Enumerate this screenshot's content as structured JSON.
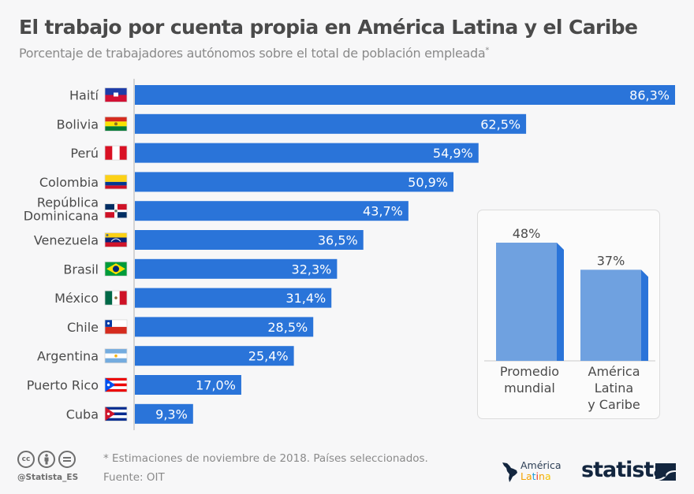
{
  "header": {
    "title": "El trabajo por cuenta propia en América Latina y el Caribe",
    "subtitle": "Porcentaje de trabajadores autónomos sobre el total de población empleada",
    "subtitle_mark": "*"
  },
  "colors": {
    "bar": "#2a74d9",
    "inset_front": "#6fa1e0",
    "inset_side": "#2a74d9",
    "axis": "#c8c8c8"
  },
  "chart_data": [
    {
      "type": "bar",
      "orientation": "horizontal",
      "title": "El trabajo por cuenta propia en América Latina y el Caribe",
      "subtitle": "Porcentaje de trabajadores autónomos sobre el total de población empleada*",
      "xlabel": "",
      "ylabel": "",
      "unit": "%",
      "xlim": [
        0,
        86.3
      ],
      "grid": false,
      "categories": [
        {
          "label": [
            "Haití"
          ],
          "flag": "haiti"
        },
        {
          "label": [
            "Bolivia"
          ],
          "flag": "bolivia"
        },
        {
          "label": [
            "Perú"
          ],
          "flag": "peru"
        },
        {
          "label": [
            "Colombia"
          ],
          "flag": "colombia"
        },
        {
          "label": [
            "República",
            "Dominicana"
          ],
          "flag": "dominican-republic"
        },
        {
          "label": [
            "Venezuela"
          ],
          "flag": "venezuela"
        },
        {
          "label": [
            "Brasil"
          ],
          "flag": "brazil"
        },
        {
          "label": [
            "México"
          ],
          "flag": "mexico"
        },
        {
          "label": [
            "Chile"
          ],
          "flag": "chile"
        },
        {
          "label": [
            "Argentina"
          ],
          "flag": "argentina"
        },
        {
          "label": [
            "Puerto Rico"
          ],
          "flag": "puerto-rico"
        },
        {
          "label": [
            "Cuba"
          ],
          "flag": "cuba"
        }
      ],
      "values": [
        86.3,
        62.5,
        54.9,
        50.9,
        43.7,
        36.5,
        32.3,
        31.4,
        28.5,
        25.4,
        17.0,
        9.3
      ],
      "value_labels": [
        "86,3%",
        "62,5%",
        "54,9%",
        "50,9%",
        "43,7%",
        "36,5%",
        "32,3%",
        "31,4%",
        "28,5%",
        "25,4%",
        "17,0%",
        "9,3%"
      ]
    },
    {
      "type": "bar",
      "orientation": "vertical",
      "title": "",
      "unit": "%",
      "ylim": [
        0,
        48
      ],
      "categories": [
        [
          "Promedio",
          "mundial"
        ],
        [
          "América",
          "Latina",
          "y Caribe"
        ]
      ],
      "values": [
        48,
        37
      ],
      "value_labels": [
        "48%",
        "37%"
      ]
    }
  ],
  "footer": {
    "license_icons": [
      "cc-icon",
      "by-icon",
      "nd-icon"
    ],
    "cc_text": "cc",
    "handle": "@Statista_ES",
    "note": "* Estimaciones de noviembre de 2018. Países seleccionados.",
    "source": "Fuente: OIT",
    "partner_logo": {
      "line1": "América",
      "line2": [
        "L",
        "a",
        "t",
        "i",
        "n",
        "a"
      ],
      "line2_colors": [
        "#f4a300",
        "#f4a300",
        "#1d9bd7",
        "#e5332a",
        "#f4a300",
        "#f4c300"
      ]
    },
    "brand": "statista"
  }
}
